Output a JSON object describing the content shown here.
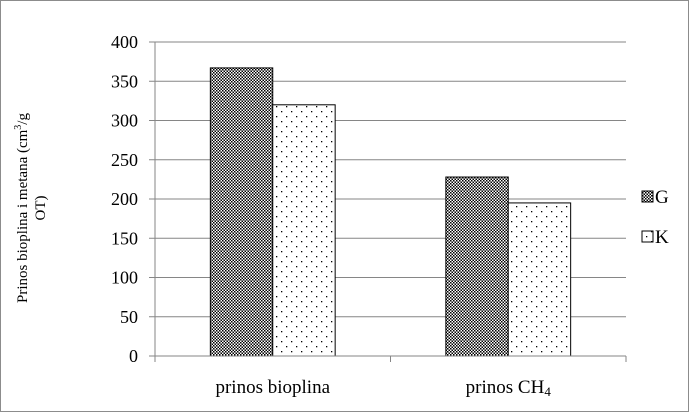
{
  "chart_data": {
    "type": "bar",
    "categories": [
      "prinos bioplina",
      "prinos CH4"
    ],
    "category_labels": [
      {
        "base": "prinos bioplina",
        "sub": ""
      },
      {
        "base": "prinos CH",
        "sub": "4"
      }
    ],
    "series": [
      {
        "name": "G",
        "values": [
          367,
          228
        ],
        "pattern": "crosshatch"
      },
      {
        "name": "K",
        "values": [
          320,
          195
        ],
        "pattern": "dots"
      }
    ],
    "ylabel_lines": [
      {
        "base": "Prinos bioplina i metana (cm",
        "sup": "3",
        "rest": "/g"
      },
      {
        "base": "OT)",
        "sup": "",
        "rest": ""
      }
    ],
    "xlabel": "",
    "ylim": [
      0,
      400
    ],
    "yticks": [
      0,
      50,
      100,
      150,
      200,
      250,
      300,
      350,
      400
    ],
    "grid": true,
    "legend_position": "right",
    "colors": {
      "gridline": "#868686",
      "bar_border": "#000000",
      "frame": "#8c8c8c"
    }
  }
}
